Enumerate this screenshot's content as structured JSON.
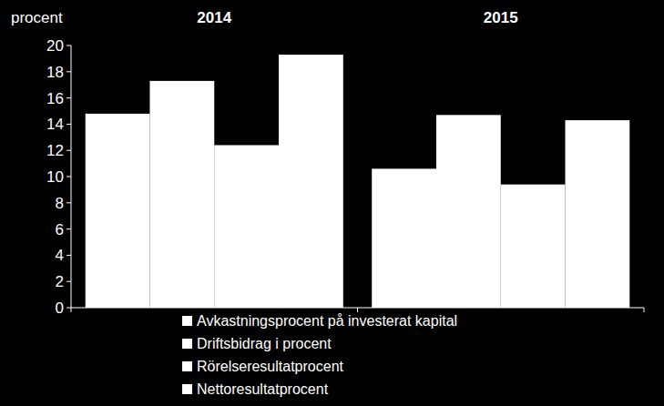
{
  "chart_data": {
    "type": "bar",
    "y_label": "procent",
    "categories": [
      "2014",
      "2015"
    ],
    "series": [
      {
        "name": "Avkastningsprocent på investerat kapital",
        "color": "#ffffff",
        "values": [
          14.8,
          10.6
        ]
      },
      {
        "name": "Driftsbidrag i procent",
        "color": "#ffffff",
        "values": [
          17.3,
          14.7
        ]
      },
      {
        "name": "Rörelseresultatprocent",
        "color": "#ffffff",
        "values": [
          12.4,
          9.4
        ]
      },
      {
        "name": "Nettoresultatprocent",
        "color": "#ffffff",
        "values": [
          19.3,
          14.3
        ]
      }
    ],
    "ylim": [
      0,
      20
    ],
    "yticks": [
      0,
      2,
      4,
      6,
      8,
      10,
      12,
      14,
      16,
      18,
      20
    ],
    "grid": false,
    "legend": "bottom"
  }
}
